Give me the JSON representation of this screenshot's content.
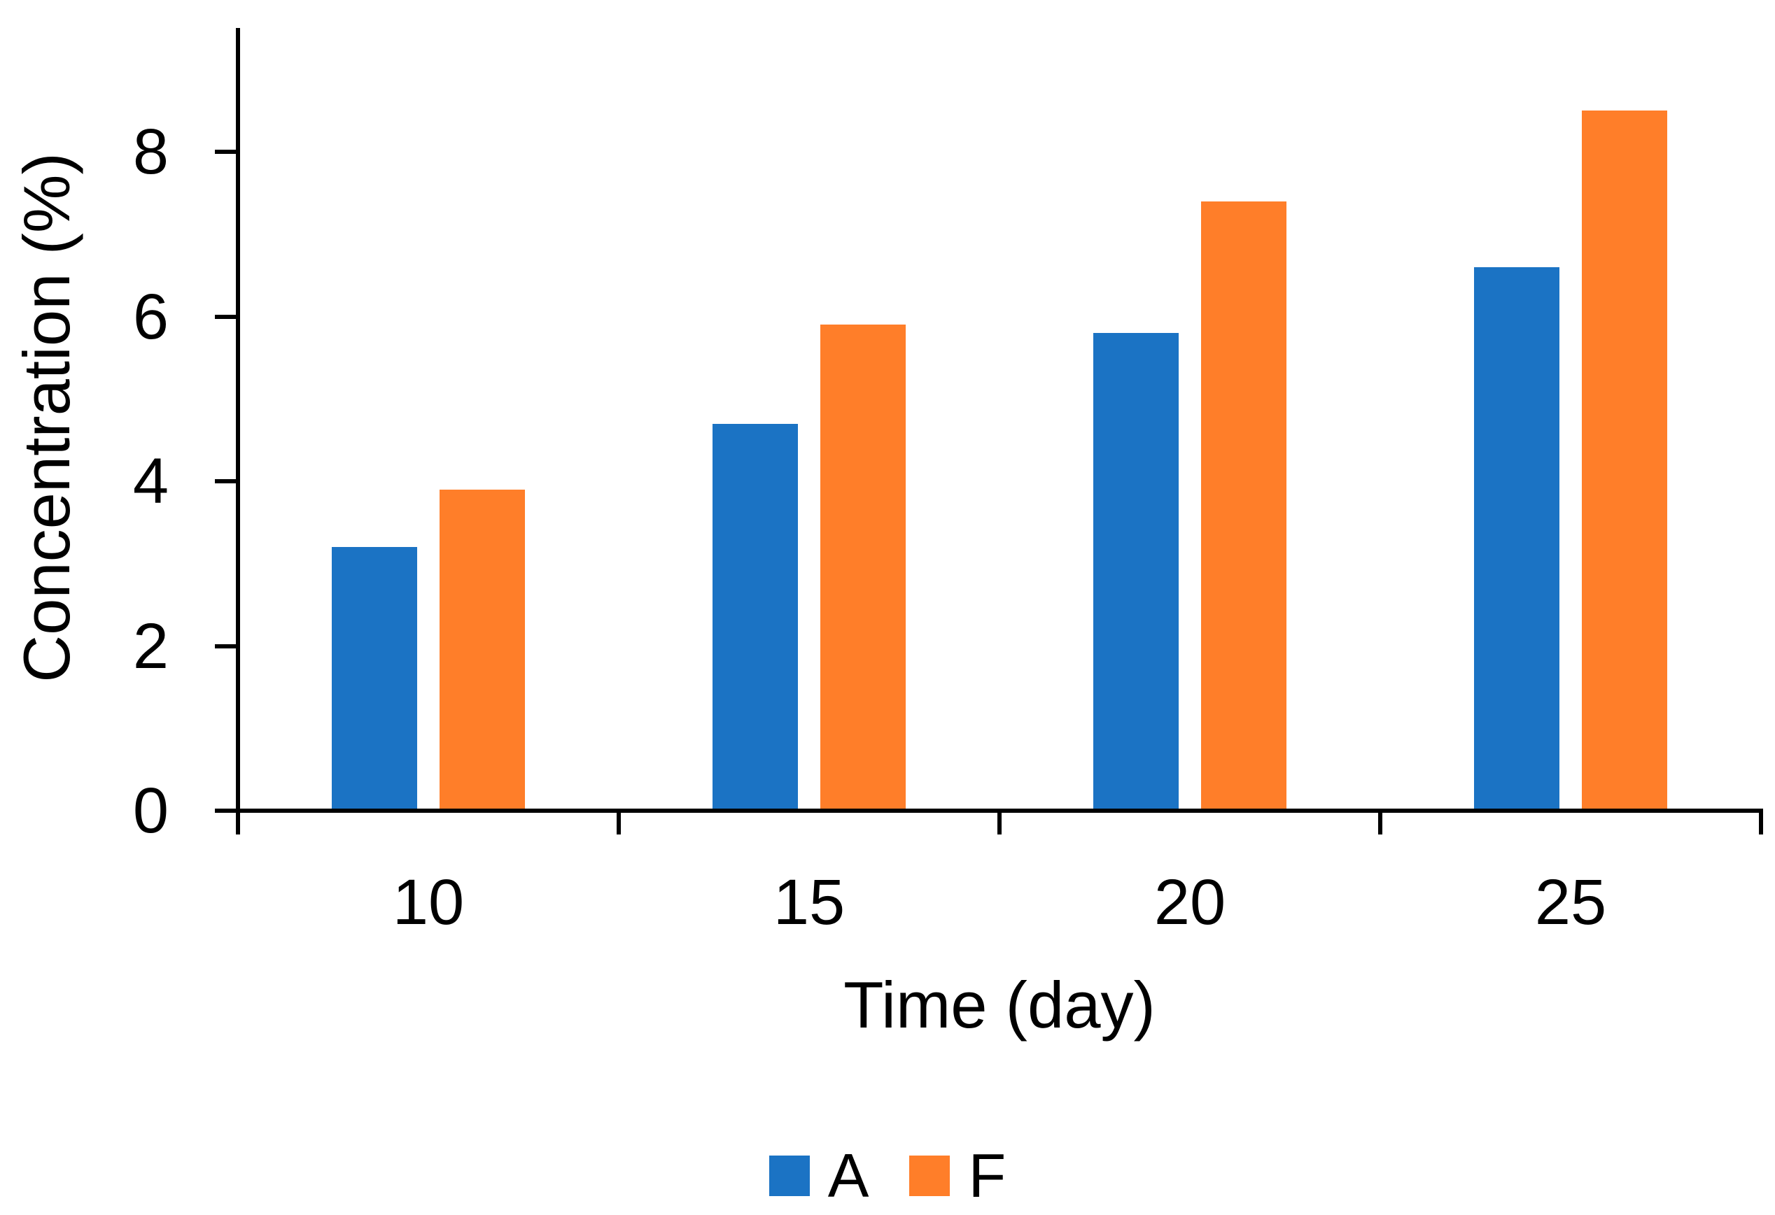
{
  "chart_data": {
    "type": "bar",
    "title": "",
    "xlabel": "Time (day)",
    "ylabel": "Concentration (%)",
    "categories": [
      "10",
      "15",
      "20",
      "25"
    ],
    "series": [
      {
        "name": "A",
        "color": "#1B73C4",
        "values": [
          3.2,
          4.7,
          5.8,
          6.6
        ]
      },
      {
        "name": "F",
        "color": "#FF7E29",
        "values": [
          3.9,
          5.9,
          7.4,
          8.5
        ]
      }
    ],
    "y_ticks": [
      "0",
      "2",
      "4",
      "6",
      "8"
    ],
    "y_tick_values": [
      0,
      2,
      4,
      6,
      8
    ],
    "ylim": [
      0,
      9.5
    ],
    "grid": false,
    "legend_position": "bottom",
    "axis_color": "#000000",
    "background": "#FFFFFF"
  }
}
